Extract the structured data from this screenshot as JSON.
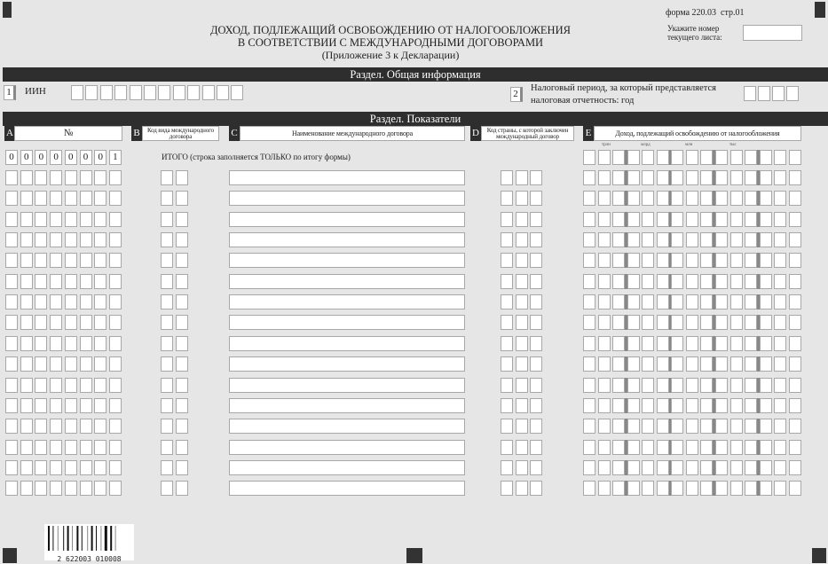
{
  "header": {
    "title_line1": "ДОХОД, ПОДЛЕЖАЩИЙ ОСВОБОЖДЕНИЮ ОТ НАЛОГООБЛОЖЕНИЯ",
    "title_line2": "В СООТВЕТСТВИИ С МЕЖДУНАРОДНЫМИ ДОГОВОРАМИ",
    "subtitle": "(Приложение 3 к Декларации)",
    "form_code": "форма 220.03  стр.01",
    "sheet_label_line1": "Укажите номер",
    "sheet_label_line2": "текущего листа:",
    "sheet_number": ""
  },
  "general_section": {
    "title": "Раздел. Общая информация",
    "field1_num": "1",
    "field1_label": "ИИН",
    "iin": [
      "",
      "",
      "",
      "",
      "",
      "",
      "",
      "",
      "",
      "",
      "",
      ""
    ],
    "field2_num": "2",
    "field2_label_line1": "Налоговый период, за который представляется",
    "field2_label_line2": "налоговая отчетность: год",
    "year": [
      "",
      "",
      "",
      ""
    ]
  },
  "indicators_section": {
    "title": "Раздел. Показатели",
    "columns": [
      {
        "letter": "A",
        "label": "№"
      },
      {
        "letter": "B",
        "label": "Код вида международного договора"
      },
      {
        "letter": "C",
        "label": "Наименование международного договора"
      },
      {
        "letter": "D",
        "label": "Код страны, с которой заключен международный договор"
      },
      {
        "letter": "E",
        "label": "Доход, подлежащий освобождению от налогообложения"
      }
    ],
    "unit_labels": [
      "трлн",
      "млрд",
      "млн",
      "тыс"
    ],
    "total_row": {
      "number": [
        "0",
        "0",
        "0",
        "0",
        "0",
        "0",
        "0",
        "1"
      ],
      "label": "ИТОГО (строка заполняется ТОЛЬКО по итогу формы)"
    },
    "empty_rows": 16
  },
  "barcode": {
    "number": "2 622003 010008"
  }
}
